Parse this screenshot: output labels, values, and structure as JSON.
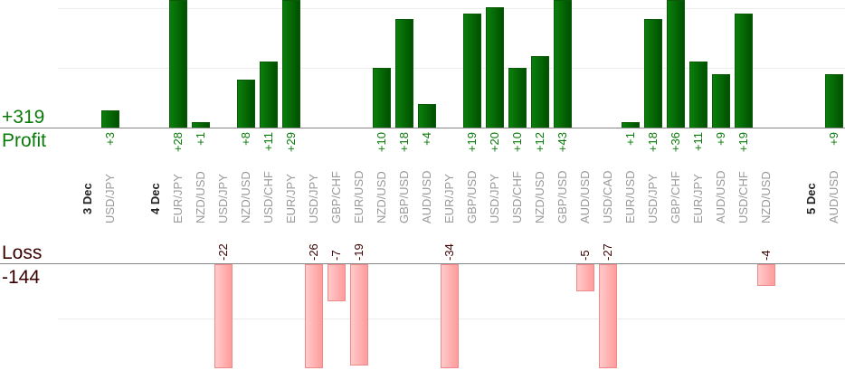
{
  "chart_data": {
    "type": "bar",
    "profit_total": "+319",
    "profit_label": "Profit",
    "loss_label": "Loss",
    "loss_total": "-144",
    "colors": {
      "profit": "#0a7a0a",
      "loss": "#ff9c9c",
      "loss_text": "#3a0000"
    },
    "columns": [
      {
        "kind": "date",
        "label": "3 Dec"
      },
      {
        "kind": "trade",
        "label": "USD/JPY",
        "value": 3,
        "text": "+3"
      },
      {
        "kind": "gap"
      },
      {
        "kind": "date",
        "label": "4 Dec"
      },
      {
        "kind": "trade",
        "label": "EUR/JPY",
        "value": 28,
        "text": "+28"
      },
      {
        "kind": "trade",
        "label": "NZD/USD",
        "value": 1,
        "text": "+1"
      },
      {
        "kind": "trade",
        "label": "USD/JPY",
        "value": -22,
        "text": "-22"
      },
      {
        "kind": "trade",
        "label": "NZD/USD",
        "value": 8,
        "text": "+8"
      },
      {
        "kind": "trade",
        "label": "USD/CHF",
        "value": 11,
        "text": "+11"
      },
      {
        "kind": "trade",
        "label": "EUR/JPY",
        "value": 29,
        "text": "+29"
      },
      {
        "kind": "trade",
        "label": "USD/JPY",
        "value": -26,
        "text": "-26"
      },
      {
        "kind": "trade",
        "label": "GBP/CHF",
        "value": -7,
        "text": "-7"
      },
      {
        "kind": "trade",
        "label": "EUR/USD",
        "value": -19,
        "text": "-19"
      },
      {
        "kind": "trade",
        "label": "NZD/USD",
        "value": 10,
        "text": "+10"
      },
      {
        "kind": "trade",
        "label": "GBP/USD",
        "value": 18,
        "text": "+18"
      },
      {
        "kind": "trade",
        "label": "AUD/USD",
        "value": 4,
        "text": "+4"
      },
      {
        "kind": "trade",
        "label": "EUR/JPY",
        "value": -34,
        "text": "-34"
      },
      {
        "kind": "trade",
        "label": "GBP/USD",
        "value": 19,
        "text": "+19"
      },
      {
        "kind": "trade",
        "label": "USD/JPY",
        "value": 20,
        "text": "+20"
      },
      {
        "kind": "trade",
        "label": "USD/CHF",
        "value": 10,
        "text": "+10"
      },
      {
        "kind": "trade",
        "label": "NZD/USD",
        "value": 12,
        "text": "+12"
      },
      {
        "kind": "trade",
        "label": "GBP/USD",
        "value": 43,
        "text": "+43"
      },
      {
        "kind": "trade",
        "label": "AUD/USD",
        "value": -5,
        "text": "-5"
      },
      {
        "kind": "trade",
        "label": "USD/CAD",
        "value": -27,
        "text": "-27"
      },
      {
        "kind": "trade",
        "label": "EUR/USD",
        "value": 1,
        "text": "+1"
      },
      {
        "kind": "trade",
        "label": "USD/JPY",
        "value": 18,
        "text": "+18"
      },
      {
        "kind": "trade",
        "label": "GBP/CHF",
        "value": 36,
        "text": "+36"
      },
      {
        "kind": "trade",
        "label": "EUR/JPY",
        "value": 11,
        "text": "+11"
      },
      {
        "kind": "trade",
        "label": "AUD/USD",
        "value": 9,
        "text": "+9"
      },
      {
        "kind": "trade",
        "label": "USD/CHF",
        "value": 19,
        "text": "+19"
      },
      {
        "kind": "trade",
        "label": "NZD/USD",
        "value": -4,
        "text": "-4"
      },
      {
        "kind": "gap"
      },
      {
        "kind": "date",
        "label": "5 Dec"
      },
      {
        "kind": "trade",
        "label": "AUD/USD",
        "value": 9,
        "text": "+9"
      }
    ]
  }
}
